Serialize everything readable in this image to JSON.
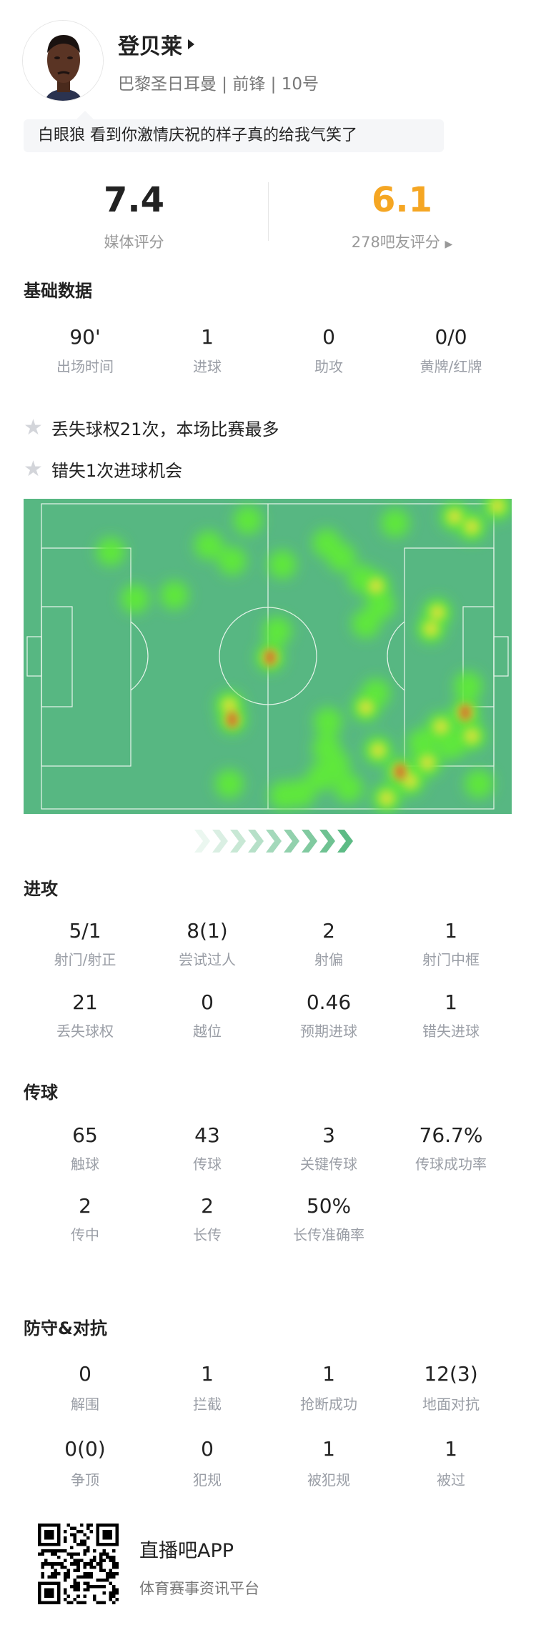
{
  "player": {
    "name": "登贝莱",
    "subtitle": "巴黎圣日耳曼 | 前锋 | 10号",
    "comment": "白眼狼 看到你激情庆祝的样子真的给我气笑了"
  },
  "ratings": {
    "media": {
      "value": "7.4",
      "label": "媒体评分"
    },
    "fans": {
      "value": "6.1",
      "label": "278吧友评分",
      "color": "#f5a623"
    }
  },
  "basic": {
    "title": "基础数据",
    "stats": [
      {
        "value": "90'",
        "label": "出场时间"
      },
      {
        "value": "1",
        "label": "进球"
      },
      {
        "value": "0",
        "label": "助攻"
      },
      {
        "value": "0/0",
        "label": "黄牌/红牌"
      }
    ],
    "highlights": [
      "丢失球权21次，本场比赛最多",
      "错失1次进球机会"
    ]
  },
  "heatmap": {
    "pitch_color": "#57b782",
    "direction": "attacking-right"
  },
  "attack": {
    "title": "进攻",
    "stats": [
      {
        "value": "5/1",
        "label": "射门/射正"
      },
      {
        "value": "8(1)",
        "label": "尝试过人"
      },
      {
        "value": "2",
        "label": "射偏"
      },
      {
        "value": "1",
        "label": "射门中框"
      },
      {
        "value": "21",
        "label": "丢失球权"
      },
      {
        "value": "0",
        "label": "越位"
      },
      {
        "value": "0.46",
        "label": "预期进球"
      },
      {
        "value": "1",
        "label": "错失进球"
      }
    ]
  },
  "passing": {
    "title": "传球",
    "stats": [
      {
        "value": "65",
        "label": "触球"
      },
      {
        "value": "43",
        "label": "传球"
      },
      {
        "value": "3",
        "label": "关键传球"
      },
      {
        "value": "76.7%",
        "label": "传球成功率"
      },
      {
        "value": "2",
        "label": "传中"
      },
      {
        "value": "2",
        "label": "长传"
      },
      {
        "value": "50%",
        "label": "长传准确率"
      }
    ]
  },
  "defense": {
    "title": "防守&对抗",
    "stats": [
      {
        "value": "0",
        "label": "解围"
      },
      {
        "value": "1",
        "label": "拦截"
      },
      {
        "value": "1",
        "label": "抢断成功"
      },
      {
        "value": "12(3)",
        "label": "地面对抗"
      },
      {
        "value": "0(0)",
        "label": "争顶"
      },
      {
        "value": "0",
        "label": "犯规"
      },
      {
        "value": "1",
        "label": "被犯规"
      },
      {
        "value": "1",
        "label": "被过"
      }
    ]
  },
  "footer": {
    "app_name": "直播吧APP",
    "slogan": "体育赛事资讯平台"
  }
}
